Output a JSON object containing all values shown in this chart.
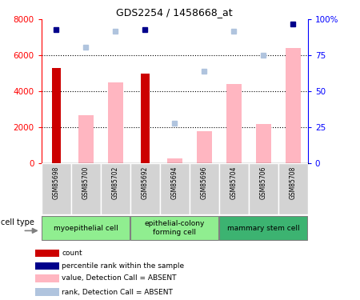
{
  "title": "GDS2254 / 1458668_at",
  "samples": [
    "GSM85698",
    "GSM85700",
    "GSM85702",
    "GSM85692",
    "GSM85694",
    "GSM85696",
    "GSM85704",
    "GSM85706",
    "GSM85708"
  ],
  "count_values": [
    5300,
    null,
    null,
    5000,
    null,
    null,
    null,
    null,
    null
  ],
  "absent_value_bars": [
    null,
    2700,
    4500,
    null,
    300,
    1800,
    4400,
    2200,
    6400
  ],
  "percentile_rank": [
    93,
    null,
    null,
    93,
    null,
    null,
    null,
    null,
    97
  ],
  "absent_rank": [
    null,
    81,
    92,
    null,
    28,
    64,
    92,
    75,
    null
  ],
  "ylim_left": [
    0,
    8000
  ],
  "ylim_right": [
    0,
    100
  ],
  "yticks_left": [
    0,
    2000,
    4000,
    6000,
    8000
  ],
  "yticks_right": [
    0,
    25,
    50,
    75,
    100
  ],
  "ytick_labels_right": [
    "0",
    "25",
    "50",
    "75",
    "100%"
  ],
  "cell_groups": [
    {
      "label": "myoepithelial cell",
      "indices": [
        0,
        1,
        2
      ],
      "color": "#90EE90"
    },
    {
      "label": "epithelial-colony\nforming cell",
      "indices": [
        3,
        4,
        5
      ],
      "color": "#90EE90"
    },
    {
      "label": "mammary stem cell",
      "indices": [
        6,
        7,
        8
      ],
      "color": "#3CB371"
    }
  ],
  "color_count": "#CC0000",
  "color_percentile": "#00008B",
  "color_absent_value": "#FFB6C1",
  "color_absent_rank": "#B0C4DE",
  "bar_width": 0.5,
  "legend_items": [
    {
      "color": "#CC0000",
      "label": "count"
    },
    {
      "color": "#00008B",
      "label": "percentile rank within the sample"
    },
    {
      "color": "#FFB6C1",
      "label": "value, Detection Call = ABSENT"
    },
    {
      "color": "#B0C4DE",
      "label": "rank, Detection Call = ABSENT"
    }
  ],
  "gridline_yticks": [
    2000,
    4000,
    6000
  ],
  "sample_cell_color": "#D3D3D3"
}
